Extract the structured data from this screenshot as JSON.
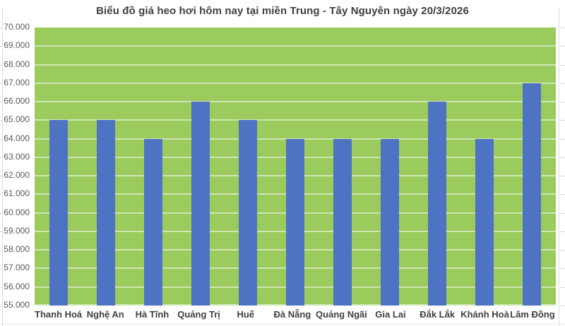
{
  "chart_data": {
    "type": "bar",
    "title": "Biểu đồ giá heo hơi hôm nay tại miền Trung - Tây Nguyên ngày 20/3/2026",
    "categories": [
      "Thanh Hoá",
      "Nghệ An",
      "Hà Tĩnh",
      "Quảng Trị",
      "Huế",
      "Đà Nẵng",
      "Quảng Ngãi",
      "Gia Lai",
      "Đắk Lắk",
      "Khánh Hoà",
      "Lâm Đồng"
    ],
    "values": [
      65000,
      65000,
      64000,
      66000,
      65000,
      64000,
      64000,
      64000,
      66000,
      64000,
      67000
    ],
    "xlabel": "",
    "ylabel": "",
    "ylim": [
      55000,
      70000
    ],
    "ytick_step": 1000,
    "ytick_labels": [
      "55.000",
      "56.000",
      "57.000",
      "58.000",
      "59.000",
      "60.000",
      "61.000",
      "62.000",
      "63.000",
      "64.000",
      "65.000",
      "66.000",
      "67.000",
      "68.000",
      "69.000",
      "70.000"
    ],
    "grid": true,
    "legend": "none",
    "colors": {
      "plot_background": "#9BCA5D",
      "bar": "#4E73C2",
      "gridline": "#CFE3AE",
      "title_text": "#3F3F3F",
      "ytick_text": "#595959",
      "xtick_text": "#3F3F3F",
      "edge_tick": "#D9D9D9"
    }
  }
}
